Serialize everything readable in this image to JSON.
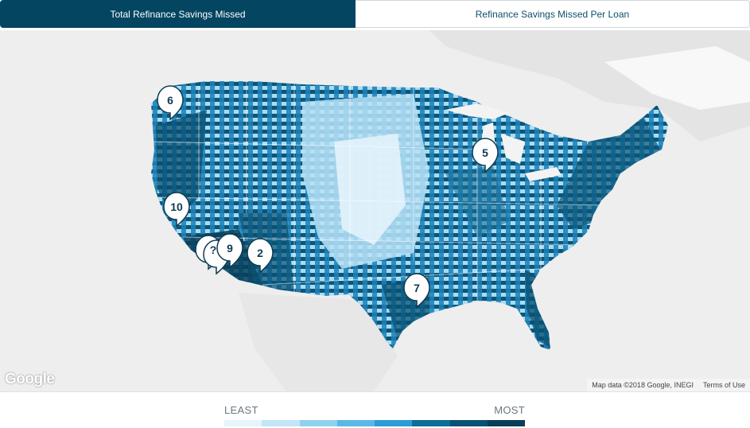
{
  "tabs": [
    {
      "label": "Total Refinance Savings Missed",
      "active": true
    },
    {
      "label": "Refinance Savings Missed Per Loan",
      "active": false
    }
  ],
  "map": {
    "attribution": "Map data ©2018 Google, INEGI",
    "terms": "Terms of Use",
    "logo": "Google",
    "pins": [
      {
        "label": "6"
      },
      {
        "label": "5"
      },
      {
        "label": "10"
      },
      {
        "label": "?"
      },
      {
        "label": "9"
      },
      {
        "label": "2"
      },
      {
        "label": "7"
      }
    ]
  },
  "legend": {
    "least": "LEAST",
    "most": "MOST",
    "colors": [
      "#e6f5fc",
      "#c2e6f7",
      "#8fd1f0",
      "#5bb8e6",
      "#2c9bd6",
      "#0d6e97",
      "#0a5173",
      "#083e58"
    ]
  }
}
